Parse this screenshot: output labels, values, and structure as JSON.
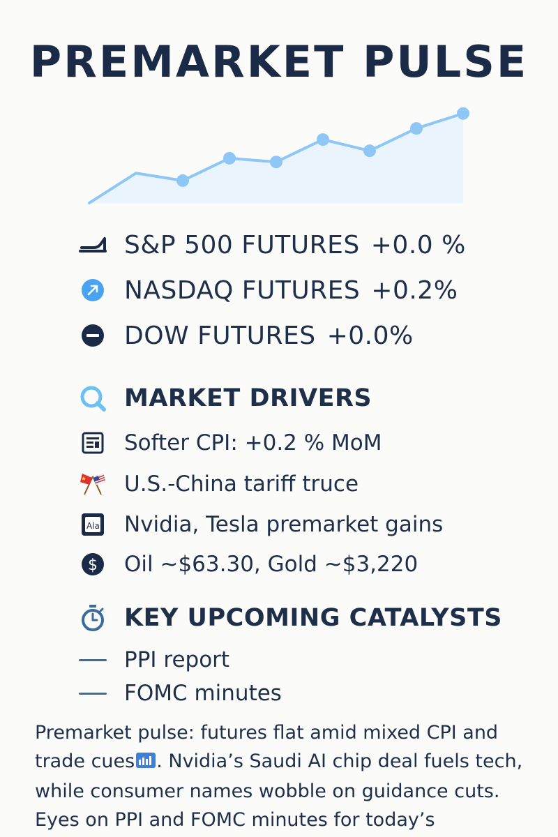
{
  "title": "PREMARKET PULSE",
  "colors": {
    "navy": "#1b2b47",
    "accent_blue": "#4aa3f0",
    "line_blue": "#8ec6f5",
    "area_fill": "#e9f4fd"
  },
  "futures": [
    {
      "label": "S&P 500 FUTURES",
      "change": "+0.0 %",
      "icon": "trend-bar-icon"
    },
    {
      "label": "NASDAQ FUTURES",
      "change": "+0.2%",
      "icon": "up-arrow-circle-icon"
    },
    {
      "label": "DOW FUTURES",
      "change": "+0.0%",
      "icon": "minus-circle-icon"
    }
  ],
  "drivers": {
    "heading": "MARKET DRIVERS",
    "heading_icon": "search-icon",
    "items": [
      {
        "text": "Softer CPI: +0.2 % MoM",
        "icon": "report-icon"
      },
      {
        "text": "U.S.-China tariff truce",
        "icon": "crossed-flags-icon"
      },
      {
        "text": "Nvidia, Tesla premarket gains",
        "icon": "ai-chip-icon"
      },
      {
        "text": "Oil ~$63.30, Gold ~$3,220",
        "icon": "dollar-circle-icon"
      }
    ]
  },
  "catalysts": {
    "heading": "KEY UPCOMING CATALYSTS",
    "heading_icon": "stopwatch-icon",
    "items": [
      {
        "text": "PPI report",
        "icon": "dash-icon"
      },
      {
        "text": "FOMC minutes",
        "icon": "dash-icon"
      }
    ]
  },
  "blurb": {
    "part1": "Premarket pulse: futures flat amid mixed CPI and trade cues",
    "part2": ". Nvidia’s Saudi AI chip deal fuels tech, while consumer names wobble on guidance cuts. Eyes on PPI and FOMC minutes for today’s"
  },
  "chart_data": {
    "type": "line",
    "title": "",
    "xlabel": "",
    "ylabel": "",
    "x": [
      0,
      1,
      2,
      3,
      4,
      5,
      6,
      7,
      8
    ],
    "values": [
      0,
      4,
      3,
      6,
      5.5,
      8.5,
      7,
      10,
      12
    ],
    "markers": [
      false,
      false,
      true,
      true,
      true,
      true,
      true,
      true,
      true
    ],
    "ylim": [
      0,
      13
    ],
    "grid": false,
    "area_fill": true
  }
}
